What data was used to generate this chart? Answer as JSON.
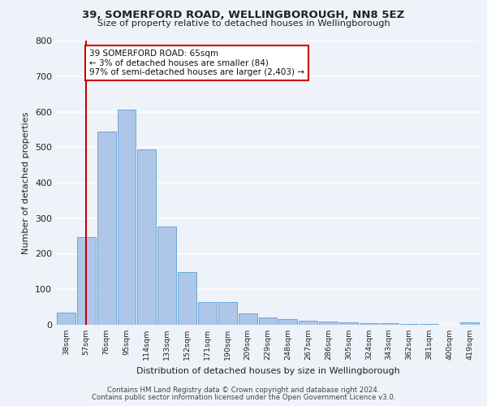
{
  "title1": "39, SOMERFORD ROAD, WELLINGBOROUGH, NN8 5EZ",
  "title2": "Size of property relative to detached houses in Wellingborough",
  "xlabel": "Distribution of detached houses by size in Wellingborough",
  "ylabel": "Number of detached properties",
  "footer1": "Contains HM Land Registry data © Crown copyright and database right 2024.",
  "footer2": "Contains public sector information licensed under the Open Government Licence v3.0.",
  "bar_labels": [
    "38sqm",
    "57sqm",
    "76sqm",
    "95sqm",
    "114sqm",
    "133sqm",
    "152sqm",
    "171sqm",
    "190sqm",
    "209sqm",
    "229sqm",
    "248sqm",
    "267sqm",
    "286sqm",
    "305sqm",
    "324sqm",
    "343sqm",
    "362sqm",
    "381sqm",
    "400sqm",
    "419sqm"
  ],
  "bar_values": [
    35,
    247,
    545,
    605,
    493,
    277,
    148,
    65,
    65,
    32,
    20,
    15,
    12,
    10,
    7,
    5,
    4,
    3,
    2,
    1,
    7
  ],
  "bar_color": "#aec6e8",
  "bar_edge_color": "#5a9fd4",
  "annotation_text_line1": "39 SOMERFORD ROAD: 65sqm",
  "annotation_text_line2": "← 3% of detached houses are smaller (84)",
  "annotation_text_line3": "97% of semi-detached houses are larger (2,403) →",
  "annotation_box_color": "#cc0000",
  "vline_color": "#cc0000",
  "ylim": [
    0,
    800
  ],
  "yticks": [
    0,
    100,
    200,
    300,
    400,
    500,
    600,
    700,
    800
  ],
  "bg_color": "#eef2f9",
  "plot_bg_color": "#eef2f9",
  "grid_color": "#ffffff"
}
